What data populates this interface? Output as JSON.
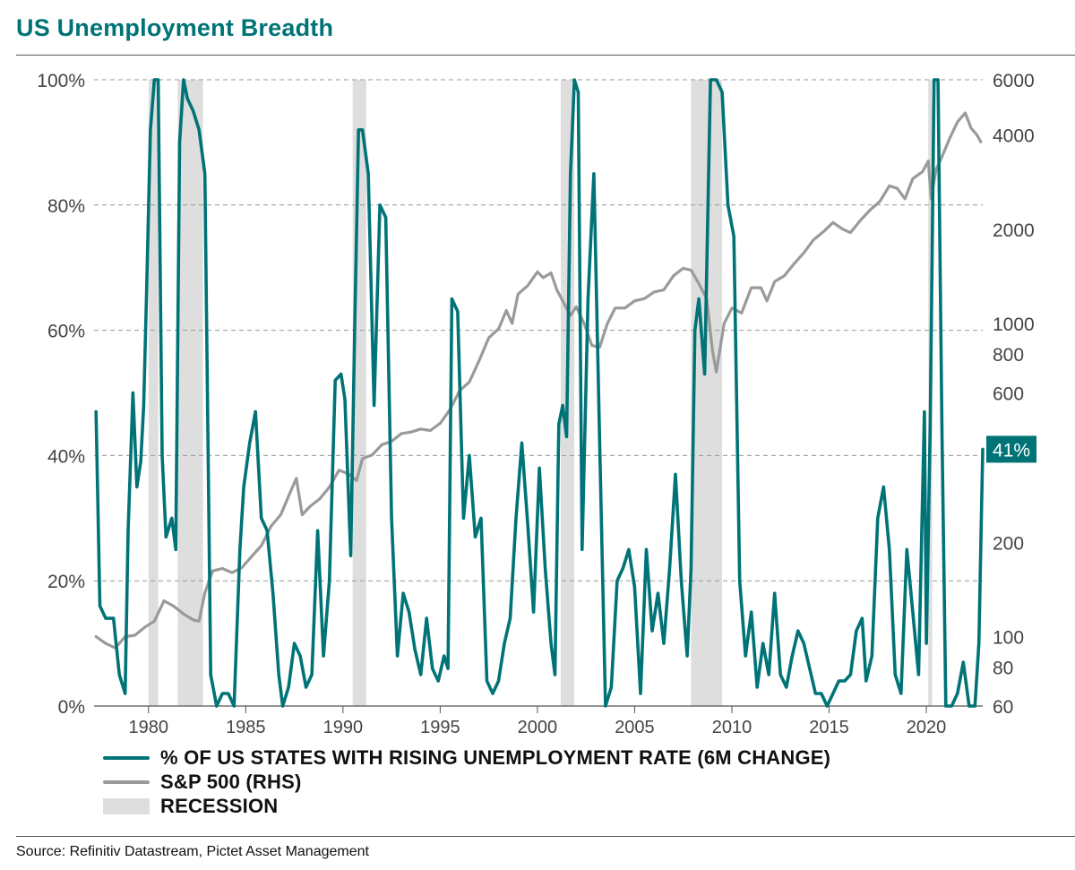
{
  "title": "US Unemployment Breadth",
  "source": "Source: Refinitiv Datastream, Pictet Asset Management",
  "colors": {
    "title": "#007377",
    "states": "#007377",
    "sp500": "#9a9a9a",
    "recession": "#dedede",
    "grid": "#999999"
  },
  "legend": {
    "states": "% OF US STATES WITH RISING UNEMPLOYMENT RATE (6M CHANGE)",
    "sp500": "S&P 500 (RHS)",
    "recession": "RECESSION"
  },
  "chart_data": {
    "type": "line",
    "xlim": [
      1977.2,
      2022.9
    ],
    "x_ticks": [
      "1980",
      "1985",
      "1990",
      "1995",
      "2000",
      "2005",
      "2010",
      "2015",
      "2020"
    ],
    "y_left": {
      "lim": [
        0,
        100
      ],
      "ticks": [
        "0%",
        "20%",
        "40%",
        "60%",
        "80%",
        "100%"
      ],
      "scale": "linear"
    },
    "y_right": {
      "lim": [
        60,
        6000
      ],
      "ticks": [
        "60",
        "80",
        "100",
        "200",
        "600",
        "800",
        "1000",
        "2000",
        "4000",
        "6000"
      ],
      "scale": "log"
    },
    "grid": "horizontal dashed",
    "last_value_label": "41%",
    "recessions": [
      [
        1980.0,
        1980.5
      ],
      [
        1981.5,
        1982.8
      ],
      [
        1990.5,
        1991.2
      ],
      [
        2001.2,
        2001.9
      ],
      [
        2007.9,
        2009.5
      ],
      [
        2020.1,
        2020.3
      ]
    ],
    "series": [
      {
        "name": "% OF US STATES WITH RISING UNEMPLOYMENT RATE (6M CHANGE)",
        "axis": "left",
        "x": [
          1977.3,
          1977.5,
          1977.8,
          1978.2,
          1978.5,
          1978.8,
          1978.95,
          1979.2,
          1979.4,
          1979.6,
          1979.75,
          1979.9,
          1980.1,
          1980.3,
          1980.5,
          1980.7,
          1980.9,
          1981.2,
          1981.4,
          1981.6,
          1981.8,
          1982.0,
          1982.3,
          1982.6,
          1982.9,
          1983.2,
          1983.5,
          1983.8,
          1984.1,
          1984.4,
          1984.7,
          1984.9,
          1985.2,
          1985.5,
          1985.8,
          1986.1,
          1986.4,
          1986.7,
          1986.9,
          1987.2,
          1987.5,
          1987.8,
          1988.1,
          1988.4,
          1988.7,
          1989.0,
          1989.3,
          1989.6,
          1989.9,
          1990.1,
          1990.4,
          1990.6,
          1990.8,
          1991.0,
          1991.3,
          1991.6,
          1991.9,
          1992.2,
          1992.5,
          1992.8,
          1993.1,
          1993.4,
          1993.7,
          1994.0,
          1994.3,
          1994.6,
          1994.9,
          1995.2,
          1995.4,
          1995.6,
          1995.9,
          1996.2,
          1996.5,
          1996.8,
          1997.1,
          1997.4,
          1997.7,
          1998.0,
          1998.3,
          1998.6,
          1998.9,
          1999.2,
          1999.5,
          1999.8,
          2000.1,
          2000.4,
          2000.7,
          2000.9,
          2001.1,
          2001.3,
          2001.5,
          2001.7,
          2001.9,
          2002.1,
          2002.3,
          2002.6,
          2002.9,
          2003.2,
          2003.5,
          2003.8,
          2004.1,
          2004.4,
          2004.7,
          2005.0,
          2005.3,
          2005.6,
          2005.9,
          2006.2,
          2006.5,
          2006.8,
          2007.1,
          2007.4,
          2007.7,
          2007.9,
          2008.1,
          2008.3,
          2008.6,
          2008.9,
          2009.2,
          2009.5,
          2009.8,
          2010.1,
          2010.4,
          2010.7,
          2011.0,
          2011.3,
          2011.6,
          2011.9,
          2012.2,
          2012.5,
          2012.8,
          2013.1,
          2013.4,
          2013.7,
          2014.0,
          2014.3,
          2014.6,
          2014.9,
          2015.2,
          2015.5,
          2015.8,
          2016.1,
          2016.4,
          2016.7,
          2016.9,
          2017.2,
          2017.5,
          2017.8,
          2018.1,
          2018.4,
          2018.7,
          2019.0,
          2019.3,
          2019.6,
          2019.9,
          2020.0,
          2020.2,
          2020.4,
          2020.6,
          2020.8,
          2021.0,
          2021.3,
          2021.6,
          2021.9,
          2022.2,
          2022.5,
          2022.7,
          2022.9
        ],
        "y": [
          47,
          16,
          14,
          14,
          5,
          2,
          28,
          50,
          35,
          39,
          48,
          66,
          92,
          100,
          100,
          40,
          27,
          30,
          25,
          90,
          100,
          97,
          95,
          92,
          85,
          5,
          0,
          2,
          2,
          0,
          25,
          35,
          42,
          47,
          30,
          28,
          18,
          5,
          0,
          3,
          10,
          8,
          3,
          5,
          28,
          8,
          20,
          52,
          53,
          49,
          24,
          60,
          92,
          92,
          85,
          48,
          80,
          78,
          30,
          8,
          18,
          15,
          9,
          5,
          14,
          6,
          4,
          8,
          6,
          65,
          63,
          30,
          40,
          27,
          30,
          4,
          2,
          4,
          10,
          14,
          30,
          42,
          29,
          15,
          38,
          22,
          10,
          5,
          45,
          48,
          43,
          85,
          100,
          98,
          25,
          65,
          85,
          42,
          0,
          3,
          20,
          22,
          25,
          19,
          2,
          25,
          12,
          18,
          10,
          22,
          37,
          20,
          8,
          22,
          60,
          65,
          53,
          100,
          100,
          98,
          80,
          75,
          20,
          8,
          15,
          3,
          10,
          5,
          18,
          5,
          3,
          8,
          12,
          10,
          6,
          2,
          2,
          0,
          2,
          4,
          4,
          5,
          12,
          14,
          4,
          8,
          30,
          35,
          25,
          5,
          2,
          25,
          15,
          5,
          47,
          10,
          45,
          100,
          100,
          45,
          0,
          0,
          2,
          7,
          0,
          0,
          10,
          41
        ]
      },
      {
        "name": "S&P 500 (RHS)",
        "axis": "right",
        "x": [
          1977.3,
          1977.8,
          1978.3,
          1978.8,
          1979.3,
          1979.8,
          1980.3,
          1980.8,
          1981.3,
          1981.8,
          1982.3,
          1982.6,
          1982.9,
          1983.3,
          1983.8,
          1984.3,
          1984.8,
          1985.3,
          1985.8,
          1986.3,
          1986.8,
          1987.3,
          1987.6,
          1987.9,
          1988.3,
          1988.8,
          1989.3,
          1989.8,
          1990.3,
          1990.7,
          1991.0,
          1991.5,
          1992.0,
          1992.5,
          1993.0,
          1993.5,
          1994.0,
          1994.5,
          1995.0,
          1995.5,
          1996.0,
          1996.5,
          1997.0,
          1997.5,
          1998.0,
          1998.4,
          1998.7,
          1999.0,
          1999.5,
          2000.0,
          2000.3,
          2000.7,
          2001.0,
          2001.3,
          2001.7,
          2002.0,
          2002.4,
          2002.8,
          2003.2,
          2003.6,
          2004.0,
          2004.5,
          2005.0,
          2005.5,
          2006.0,
          2006.5,
          2007.0,
          2007.5,
          2007.9,
          2008.3,
          2008.7,
          2009.0,
          2009.2,
          2009.6,
          2010.0,
          2010.5,
          2011.0,
          2011.5,
          2011.8,
          2012.2,
          2012.7,
          2013.2,
          2013.7,
          2014.2,
          2014.7,
          2015.2,
          2015.7,
          2016.1,
          2016.6,
          2017.1,
          2017.6,
          2018.1,
          2018.5,
          2018.9,
          2019.3,
          2019.8,
          2020.1,
          2020.25,
          2020.5,
          2020.8,
          2021.2,
          2021.6,
          2022.0,
          2022.3,
          2022.6,
          2022.8
        ],
        "y": [
          100,
          95,
          92,
          100,
          101,
          107,
          112,
          130,
          125,
          118,
          113,
          112,
          138,
          162,
          165,
          160,
          166,
          180,
          195,
          225,
          245,
          290,
          320,
          245,
          260,
          275,
          300,
          340,
          330,
          315,
          370,
          380,
          410,
          420,
          445,
          450,
          460,
          455,
          480,
          530,
          610,
          650,
          760,
          900,
          960,
          1100,
          1000,
          1240,
          1320,
          1460,
          1400,
          1450,
          1280,
          1180,
          1060,
          1130,
          1000,
          850,
          840,
          1000,
          1120,
          1120,
          1180,
          1200,
          1260,
          1280,
          1420,
          1500,
          1480,
          1340,
          1200,
          820,
          700,
          1000,
          1120,
          1080,
          1300,
          1300,
          1180,
          1360,
          1420,
          1550,
          1680,
          1850,
          1960,
          2100,
          2000,
          1950,
          2130,
          2300,
          2450,
          2750,
          2700,
          2500,
          2900,
          3050,
          3300,
          2500,
          3100,
          3400,
          3900,
          4400,
          4700,
          4200,
          4000,
          3800
        ]
      }
    ]
  }
}
